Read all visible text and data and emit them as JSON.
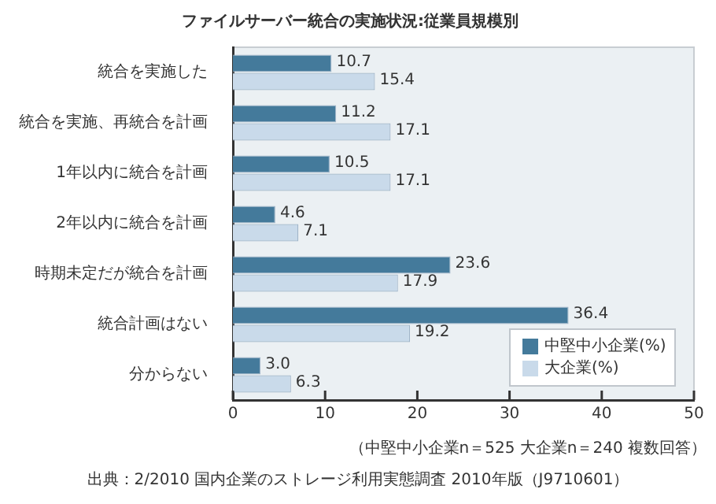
{
  "chart_data": {
    "type": "bar",
    "orientation": "horizontal",
    "title": "ファイルサーバー統合の実施状況:従業員規模別",
    "categories": [
      "統合を実施した",
      "統合を実施、再統合を計画",
      "1年以内に統合を計画",
      "2年以内に統合を計画",
      "時期未定だが統合を計画",
      "統合計画はない",
      "分からない"
    ],
    "series": [
      {
        "name": "中堅中小企業(%)",
        "color": "#447a9b",
        "values": [
          10.7,
          11.2,
          10.5,
          4.6,
          23.6,
          36.4,
          3.0
        ]
      },
      {
        "name": "大企業(%)",
        "color": "#c9daea",
        "values": [
          15.4,
          17.1,
          17.1,
          7.1,
          17.9,
          19.2,
          6.3
        ]
      }
    ],
    "value_labels": [
      [
        "10.7",
        "11.2",
        "10.5",
        "4.6",
        "23.6",
        "36.4",
        "3.0"
      ],
      [
        "15.4",
        "17.1",
        "17.1",
        "7.1",
        "17.9",
        "19.2",
        "6.3"
      ]
    ],
    "xlim": [
      0,
      50
    ],
    "xticks": [
      0,
      10,
      20,
      30,
      40,
      50
    ],
    "grid": false,
    "legend": "bottom right",
    "annotations": [
      "（中堅中小企業n＝525 大企業n＝240 複数回答）",
      "出典：2/2010 国内企業のストレージ利用実態調査 2010年版（J9710601）"
    ]
  }
}
